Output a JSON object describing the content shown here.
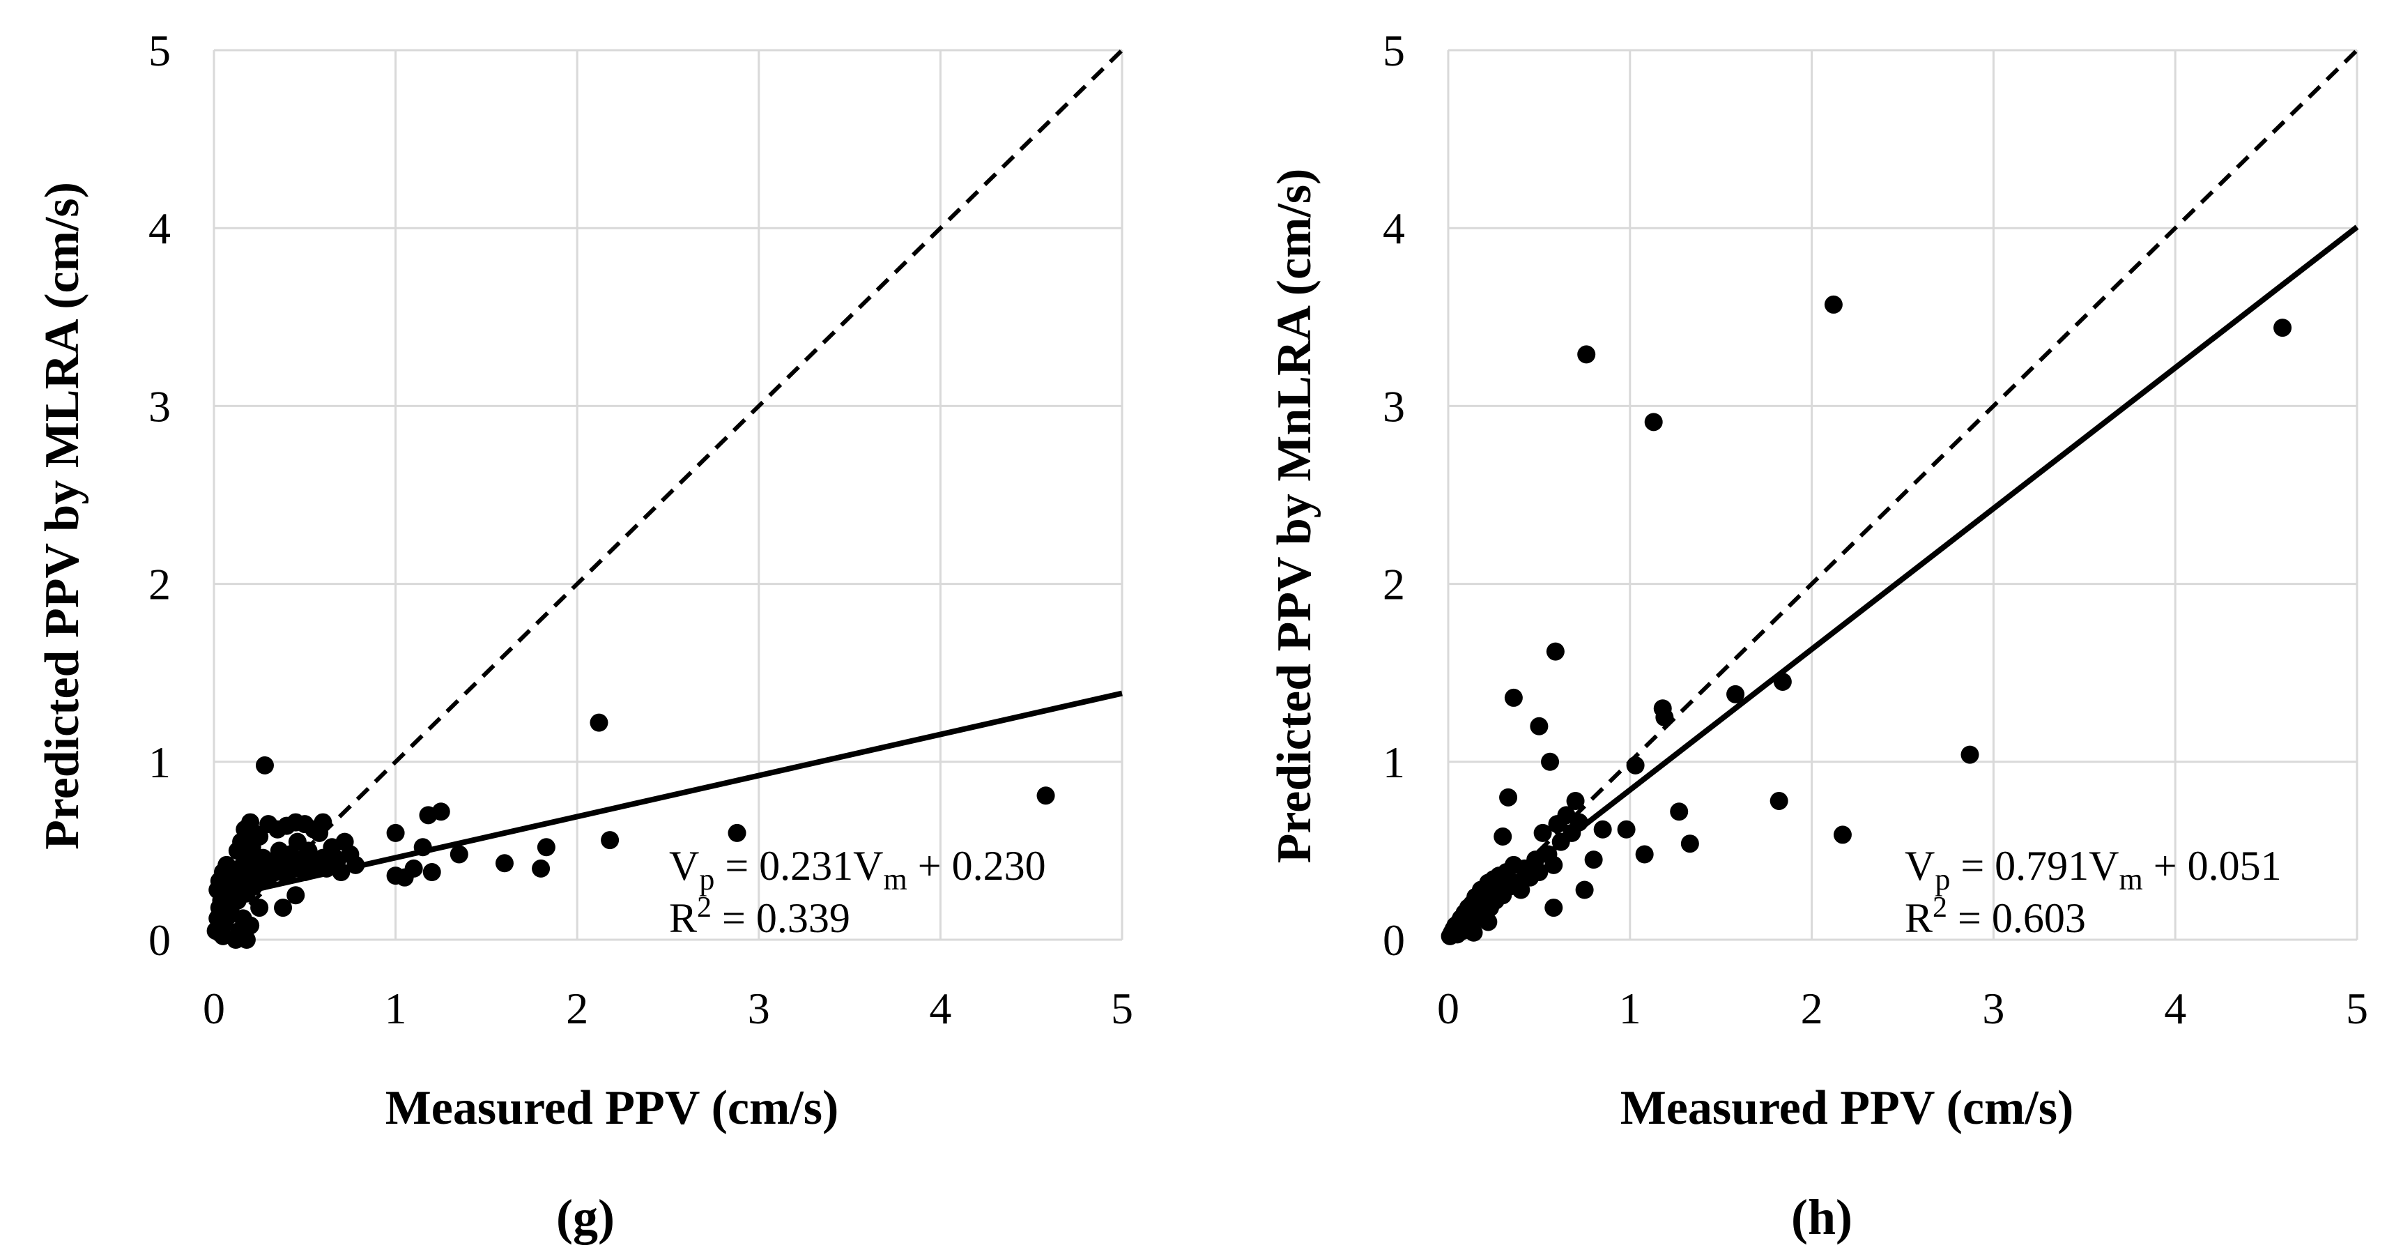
{
  "chart_data": [
    {
      "type": "scatter",
      "panel_label": "(g)",
      "xlabel": "Measured PPV (cm/s)",
      "ylabel": "Predicted PPV by MLRA (cm/s)",
      "xlim": [
        0,
        5
      ],
      "ylim": [
        0,
        5
      ],
      "xticks": [
        "0",
        "1",
        "2",
        "3",
        "4",
        "5"
      ],
      "yticks": [
        "0",
        "1",
        "2",
        "3",
        "4",
        "5"
      ],
      "grid": true,
      "reference_line": {
        "style": "dashed",
        "slope": 1,
        "intercept": 0
      },
      "fit_line": {
        "style": "solid",
        "slope": 0.231,
        "intercept": 0.23
      },
      "equation": {
        "lhs_main": "V",
        "lhs_sub": "p",
        "mid": " = 0.231V",
        "rhs_sub": "m",
        "tail": " + 0.230"
      },
      "r2": {
        "main": "R",
        "sup": "2",
        "tail": " = 0.339"
      },
      "points": [
        [
          0.01,
          0.05
        ],
        [
          0.02,
          0.12
        ],
        [
          0.03,
          0.18
        ],
        [
          0.04,
          0.22
        ],
        [
          0.05,
          0.08
        ],
        [
          0.06,
          0.26
        ],
        [
          0.07,
          0.3
        ],
        [
          0.08,
          0.15
        ],
        [
          0.09,
          0.35
        ],
        [
          0.1,
          0.2
        ],
        [
          0.02,
          0.28
        ],
        [
          0.03,
          0.33
        ],
        [
          0.05,
          0.38
        ],
        [
          0.06,
          0.1
        ],
        [
          0.07,
          0.42
        ],
        [
          0.08,
          0.24
        ],
        [
          0.09,
          0.17
        ],
        [
          0.1,
          0.31
        ],
        [
          0.11,
          0.27
        ],
        [
          0.12,
          0.36
        ],
        [
          0.13,
          0.22
        ],
        [
          0.14,
          0.4
        ],
        [
          0.15,
          0.3
        ],
        [
          0.16,
          0.48
        ],
        [
          0.17,
          0.34
        ],
        [
          0.18,
          0.26
        ],
        [
          0.19,
          0.44
        ],
        [
          0.2,
          0.38
        ],
        [
          0.21,
          0.52
        ],
        [
          0.22,
          0.3
        ],
        [
          0.23,
          0.42
        ],
        [
          0.24,
          0.36
        ],
        [
          0.25,
          0.58
        ],
        [
          0.26,
          0.33
        ],
        [
          0.27,
          0.46
        ],
        [
          0.28,
          0.4
        ],
        [
          0.3,
          0.35
        ],
        [
          0.32,
          0.44
        ],
        [
          0.34,
          0.38
        ],
        [
          0.36,
          0.5
        ],
        [
          0.38,
          0.42
        ],
        [
          0.4,
          0.36
        ],
        [
          0.42,
          0.48
        ],
        [
          0.44,
          0.4
        ],
        [
          0.46,
          0.55
        ],
        [
          0.48,
          0.45
        ],
        [
          0.5,
          0.38
        ],
        [
          0.52,
          0.5
        ],
        [
          0.55,
          0.42
        ],
        [
          0.58,
          0.6
        ],
        [
          0.6,
          0.46
        ],
        [
          0.62,
          0.4
        ],
        [
          0.65,
          0.52
        ],
        [
          0.68,
          0.45
        ],
        [
          0.7,
          0.38
        ],
        [
          0.72,
          0.55
        ],
        [
          0.75,
          0.48
        ],
        [
          0.78,
          0.42
        ],
        [
          0.12,
          0.0
        ],
        [
          0.14,
          0.05
        ],
        [
          0.16,
          0.12
        ],
        [
          0.18,
          0.0
        ],
        [
          0.2,
          0.08
        ],
        [
          0.13,
          0.5
        ],
        [
          0.15,
          0.55
        ],
        [
          0.17,
          0.62
        ],
        [
          0.2,
          0.66
        ],
        [
          0.22,
          0.6
        ],
        [
          0.28,
          0.98
        ],
        [
          0.3,
          0.65
        ],
        [
          0.35,
          0.62
        ],
        [
          0.4,
          0.64
        ],
        [
          0.45,
          0.66
        ],
        [
          0.5,
          0.65
        ],
        [
          0.55,
          0.62
        ],
        [
          0.6,
          0.66
        ],
        [
          0.38,
          0.18
        ],
        [
          0.45,
          0.25
        ],
        [
          0.25,
          0.18
        ],
        [
          0.05,
          0.02
        ],
        [
          1.0,
          0.6
        ],
        [
          1.0,
          0.36
        ],
        [
          1.05,
          0.35
        ],
        [
          1.1,
          0.4
        ],
        [
          1.15,
          0.52
        ],
        [
          1.18,
          0.7
        ],
        [
          1.2,
          0.38
        ],
        [
          1.25,
          0.72
        ],
        [
          1.35,
          0.48
        ],
        [
          1.6,
          0.43
        ],
        [
          1.8,
          0.4
        ],
        [
          1.83,
          0.52
        ],
        [
          2.12,
          1.22
        ],
        [
          2.18,
          0.56
        ],
        [
          2.88,
          0.6
        ],
        [
          4.58,
          0.81
        ]
      ]
    },
    {
      "type": "scatter",
      "panel_label": "(h)",
      "xlabel": "Measured PPV (cm/s)",
      "ylabel": "Predicted PPV by MnLRA (cm/s)",
      "xlim": [
        0,
        5
      ],
      "ylim": [
        0,
        5
      ],
      "xticks": [
        "0",
        "1",
        "2",
        "3",
        "4",
        "5"
      ],
      "yticks": [
        "0",
        "1",
        "2",
        "3",
        "4",
        "5"
      ],
      "grid": true,
      "reference_line": {
        "style": "dashed",
        "slope": 1,
        "intercept": 0
      },
      "fit_line": {
        "style": "solid",
        "slope": 0.791,
        "intercept": 0.051
      },
      "equation": {
        "lhs_main": "V",
        "lhs_sub": "p",
        "mid": " = 0.791V",
        "rhs_sub": "m",
        "tail": " + 0.051"
      },
      "r2": {
        "main": "R",
        "sup": "2",
        "tail": " = 0.603"
      },
      "points": [
        [
          0.01,
          0.02
        ],
        [
          0.02,
          0.04
        ],
        [
          0.03,
          0.06
        ],
        [
          0.04,
          0.08
        ],
        [
          0.05,
          0.03
        ],
        [
          0.06,
          0.1
        ],
        [
          0.07,
          0.12
        ],
        [
          0.08,
          0.05
        ],
        [
          0.09,
          0.15
        ],
        [
          0.1,
          0.08
        ],
        [
          0.11,
          0.18
        ],
        [
          0.12,
          0.1
        ],
        [
          0.13,
          0.2
        ],
        [
          0.14,
          0.14
        ],
        [
          0.15,
          0.24
        ],
        [
          0.16,
          0.12
        ],
        [
          0.17,
          0.22
        ],
        [
          0.18,
          0.28
        ],
        [
          0.19,
          0.16
        ],
        [
          0.2,
          0.26
        ],
        [
          0.21,
          0.2
        ],
        [
          0.22,
          0.32
        ],
        [
          0.23,
          0.18
        ],
        [
          0.24,
          0.28
        ],
        [
          0.25,
          0.34
        ],
        [
          0.26,
          0.22
        ],
        [
          0.27,
          0.3
        ],
        [
          0.28,
          0.36
        ],
        [
          0.3,
          0.25
        ],
        [
          0.32,
          0.38
        ],
        [
          0.34,
          0.3
        ],
        [
          0.36,
          0.42
        ],
        [
          0.38,
          0.32
        ],
        [
          0.4,
          0.28
        ],
        [
          0.42,
          0.4
        ],
        [
          0.45,
          0.35
        ],
        [
          0.48,
          0.45
        ],
        [
          0.5,
          0.38
        ],
        [
          0.52,
          0.6
        ],
        [
          0.55,
          0.48
        ],
        [
          0.58,
          0.42
        ],
        [
          0.6,
          0.65
        ],
        [
          0.62,
          0.55
        ],
        [
          0.65,
          0.7
        ],
        [
          0.68,
          0.6
        ],
        [
          0.7,
          0.78
        ],
        [
          0.72,
          0.66
        ],
        [
          0.75,
          0.28
        ],
        [
          0.8,
          0.45
        ],
        [
          0.85,
          0.62
        ],
        [
          0.14,
          0.04
        ],
        [
          0.22,
          0.1
        ],
        [
          0.3,
          0.58
        ],
        [
          0.33,
          0.8
        ],
        [
          0.36,
          1.36
        ],
        [
          0.5,
          1.2
        ],
        [
          0.56,
          1.0
        ],
        [
          0.59,
          1.62
        ],
        [
          0.58,
          0.18
        ],
        [
          0.76,
          3.29
        ],
        [
          0.98,
          0.62
        ],
        [
          1.03,
          0.98
        ],
        [
          1.08,
          0.48
        ],
        [
          1.13,
          2.91
        ],
        [
          1.18,
          1.3
        ],
        [
          1.19,
          1.25
        ],
        [
          1.27,
          0.72
        ],
        [
          1.33,
          0.54
        ],
        [
          1.58,
          1.38
        ],
        [
          1.82,
          0.78
        ],
        [
          1.84,
          1.45
        ],
        [
          2.12,
          3.57
        ],
        [
          2.17,
          0.59
        ],
        [
          2.87,
          1.04
        ],
        [
          4.59,
          3.44
        ]
      ]
    }
  ]
}
